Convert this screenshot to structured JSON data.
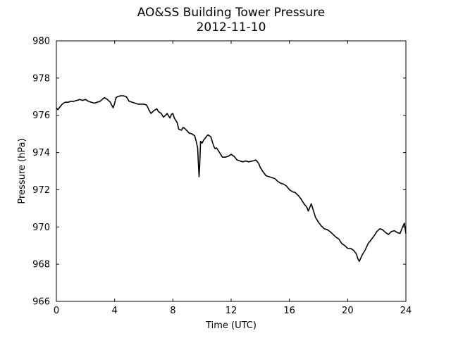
{
  "chart_data": {
    "type": "line",
    "title": "AO&SS Building Tower Pressure",
    "subtitle": "2012-11-10",
    "xlabel": "Time (UTC)",
    "ylabel": "Pressure (hPa)",
    "xlim": [
      0,
      24
    ],
    "ylim": [
      966,
      980
    ],
    "xticks": [
      0,
      4,
      8,
      12,
      16,
      20,
      24
    ],
    "yticks": [
      966,
      968,
      970,
      972,
      974,
      976,
      978,
      980
    ],
    "grid": false,
    "series": [
      {
        "color": "#000000",
        "x": [
          0,
          0.1,
          0.2,
          0.3,
          0.4,
          0.5,
          0.6,
          0.8,
          1.0,
          1.2,
          1.4,
          1.6,
          1.8,
          2.0,
          2.2,
          2.4,
          2.6,
          2.8,
          3.0,
          3.15,
          3.3,
          3.5,
          3.7,
          3.8,
          3.9,
          4.0,
          4.1,
          4.2,
          4.4,
          4.6,
          4.8,
          5.0,
          5.2,
          5.4,
          5.6,
          5.8,
          6.0,
          6.2,
          6.35,
          6.5,
          6.7,
          6.9,
          7.0,
          7.2,
          7.35,
          7.5,
          7.6,
          7.8,
          7.9,
          8.0,
          8.1,
          8.3,
          8.4,
          8.6,
          8.7,
          8.8,
          9.0,
          9.1,
          9.3,
          9.5,
          9.6,
          9.7,
          9.75,
          9.8,
          9.85,
          9.9,
          10.0,
          10.1,
          10.2,
          10.4,
          10.6,
          10.8,
          10.9,
          11.0,
          11.2,
          11.4,
          11.6,
          11.8,
          12.0,
          12.2,
          12.4,
          12.6,
          12.8,
          13.0,
          13.2,
          13.5,
          13.7,
          13.9,
          14.0,
          14.2,
          14.4,
          14.6,
          14.8,
          15.0,
          15.2,
          15.4,
          15.6,
          15.8,
          16.0,
          16.2,
          16.4,
          16.6,
          16.8,
          17.0,
          17.2,
          17.3,
          17.5,
          17.7,
          17.8,
          18.0,
          18.2,
          18.4,
          18.6,
          18.8,
          19.0,
          19.2,
          19.4,
          19.6,
          19.8,
          20.0,
          20.2,
          20.4,
          20.6,
          20.7,
          20.8,
          21.0,
          21.2,
          21.4,
          21.6,
          21.8,
          22.0,
          22.2,
          22.4,
          22.6,
          22.8,
          23.0,
          23.2,
          23.4,
          23.6,
          23.8,
          23.9,
          24.0
        ],
        "values": [
          976.4,
          976.3,
          976.4,
          976.5,
          976.6,
          976.65,
          976.7,
          976.7,
          976.75,
          976.75,
          976.8,
          976.85,
          976.8,
          976.85,
          976.75,
          976.7,
          976.65,
          976.7,
          976.75,
          976.85,
          976.95,
          976.85,
          976.7,
          976.55,
          976.4,
          976.65,
          976.95,
          977.0,
          977.05,
          977.05,
          977.0,
          976.75,
          976.7,
          976.65,
          976.6,
          976.6,
          976.6,
          976.55,
          976.3,
          976.1,
          976.25,
          976.35,
          976.2,
          976.1,
          975.9,
          976.0,
          976.1,
          975.85,
          976.05,
          976.1,
          975.85,
          975.6,
          975.25,
          975.2,
          975.35,
          975.3,
          975.15,
          975.05,
          975.0,
          974.9,
          974.6,
          974.25,
          973.4,
          972.7,
          973.5,
          974.6,
          974.5,
          974.65,
          974.75,
          974.95,
          974.85,
          974.35,
          974.2,
          974.25,
          974.0,
          973.75,
          973.75,
          973.8,
          973.9,
          973.8,
          973.6,
          973.55,
          973.5,
          973.55,
          973.5,
          973.55,
          973.6,
          973.4,
          973.2,
          972.95,
          972.75,
          972.7,
          972.65,
          972.6,
          972.45,
          972.35,
          972.3,
          972.2,
          972.0,
          971.9,
          971.85,
          971.7,
          971.5,
          971.25,
          971.05,
          970.85,
          971.25,
          970.75,
          970.5,
          970.25,
          970.05,
          969.9,
          969.85,
          969.75,
          969.6,
          969.45,
          969.35,
          969.1,
          969.0,
          968.85,
          968.85,
          968.75,
          968.55,
          968.3,
          968.15,
          968.5,
          968.75,
          969.1,
          969.3,
          969.5,
          969.75,
          969.9,
          969.85,
          969.7,
          969.6,
          969.75,
          969.8,
          969.7,
          969.65,
          970.05,
          970.2,
          969.65
        ]
      }
    ]
  }
}
